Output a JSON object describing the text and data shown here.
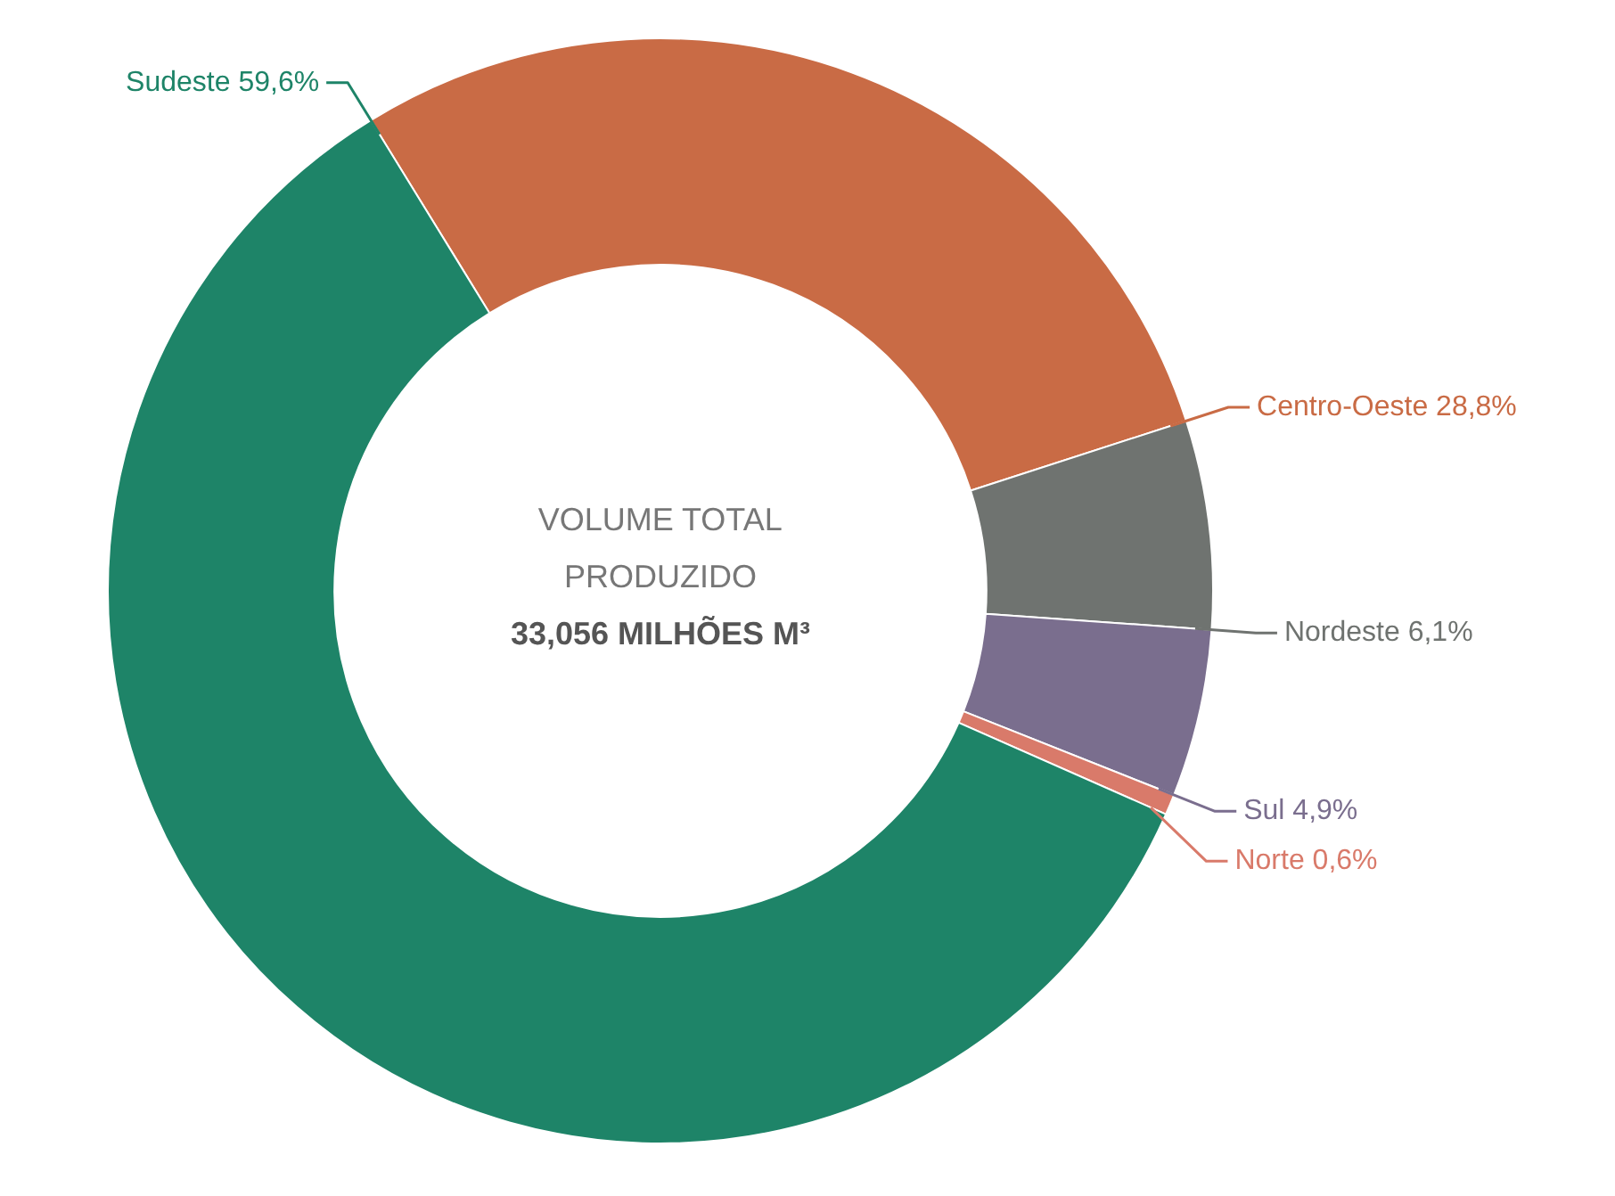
{
  "chart_data": {
    "type": "donut",
    "categories": [
      "Centro-Oeste",
      "Nordeste",
      "Sul",
      "Norte",
      "Sudeste"
    ],
    "values": [
      28.8,
      6.1,
      4.9,
      0.6,
      59.6
    ],
    "colors": [
      "#c96b45",
      "#6f7370",
      "#7a6e8e",
      "#d97a6a",
      "#1e8468"
    ],
    "value_labels": [
      "28,8%",
      "6,1%",
      "4,9%",
      "0,6%",
      "59,6%"
    ],
    "annotations": [
      "VOLUME TOTAL",
      "PRODUZIDO",
      "33,056 MILHÕES M³"
    ]
  }
}
